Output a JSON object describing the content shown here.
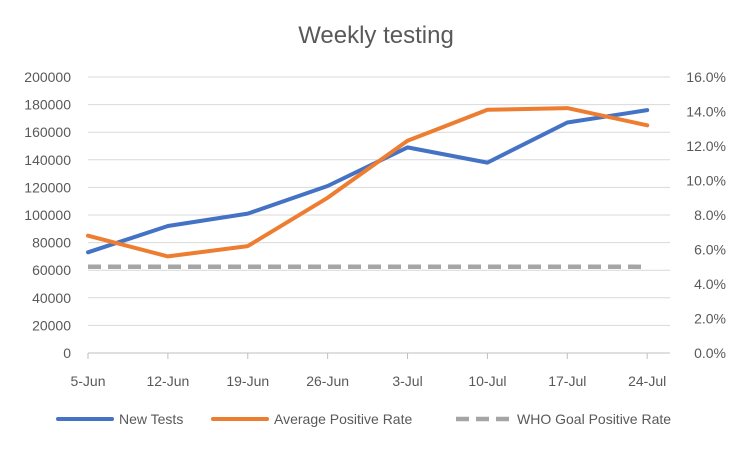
{
  "chart_data": {
    "type": "line",
    "title": "Weekly testing",
    "xlabel": "",
    "ylabel": "",
    "y2label": "",
    "categories": [
      "5-Jun",
      "12-Jun",
      "19-Jun",
      "26-Jun",
      "3-Jul",
      "10-Jul",
      "17-Jul",
      "24-Jul"
    ],
    "x_days": [
      0,
      7,
      14,
      21,
      28,
      35,
      42,
      49
    ],
    "left_axis": {
      "ylim": [
        0,
        200000
      ],
      "ticks": [
        0,
        20000,
        40000,
        60000,
        80000,
        100000,
        120000,
        140000,
        160000,
        180000,
        200000
      ],
      "tick_labels": [
        "0",
        "20000",
        "40000",
        "60000",
        "80000",
        "100000",
        "120000",
        "140000",
        "160000",
        "180000",
        "200000"
      ]
    },
    "right_axis": {
      "ylim": [
        0,
        16
      ],
      "ticks": [
        0,
        2,
        4,
        6,
        8,
        10,
        12,
        14,
        16
      ],
      "tick_labels": [
        "0.0%",
        "2.0%",
        "4.0%",
        "6.0%",
        "8.0%",
        "10.0%",
        "12.0%",
        "14.0%",
        "16.0%"
      ]
    },
    "grid": true,
    "legend_position": "bottom",
    "series": [
      {
        "name": "New Tests",
        "axis": "left",
        "color": "#4472c4",
        "style": "solid",
        "points": [
          {
            "x": 0,
            "y": 73000
          },
          {
            "x": 7,
            "y": 92000
          },
          {
            "x": 14,
            "y": 101000
          },
          {
            "x": 21,
            "y": 121000
          },
          {
            "x": 28,
            "y": 149000
          },
          {
            "x": 35,
            "y": 138000
          },
          {
            "x": 42,
            "y": 167000
          },
          {
            "x": 49,
            "y": 176000
          }
        ]
      },
      {
        "name": "Average Positive Rate",
        "axis": "right",
        "color": "#ed7d31",
        "style": "solid",
        "points": [
          {
            "x": 0,
            "y": 6.8
          },
          {
            "x": 7,
            "y": 5.6
          },
          {
            "x": 14,
            "y": 6.2
          },
          {
            "x": 21,
            "y": 9.0
          },
          {
            "x": 28,
            "y": 12.3
          },
          {
            "x": 35,
            "y": 14.1
          },
          {
            "x": 42,
            "y": 14.2
          },
          {
            "x": 49,
            "y": 13.2
          }
        ]
      },
      {
        "name": "WHO Goal Positive Rate",
        "axis": "right",
        "color": "#a5a5a5",
        "style": "dashed",
        "points": [
          {
            "x": 0,
            "y": 5.0
          },
          {
            "x": 49,
            "y": 5.0
          }
        ]
      }
    ]
  }
}
